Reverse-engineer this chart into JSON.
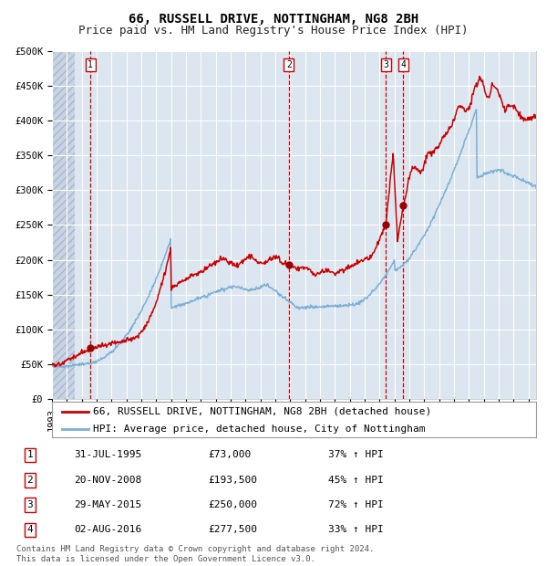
{
  "title": "66, RUSSELL DRIVE, NOTTINGHAM, NG8 2BH",
  "subtitle": "Price paid vs. HM Land Registry's House Price Index (HPI)",
  "ylim": [
    0,
    500000
  ],
  "yticks": [
    0,
    50000,
    100000,
    150000,
    200000,
    250000,
    300000,
    350000,
    400000,
    450000,
    500000
  ],
  "ytick_labels": [
    "£0",
    "£50K",
    "£100K",
    "£150K",
    "£200K",
    "£250K",
    "£300K",
    "£350K",
    "£400K",
    "£450K",
    "£500K"
  ],
  "background_color": "#ffffff",
  "plot_bg_color": "#dce6f1",
  "grid_color": "#ffffff",
  "red_line_color": "#cc0000",
  "blue_line_color": "#7bafd4",
  "marker_color": "#990000",
  "vline_color": "#cc0000",
  "title_fontsize": 10,
  "subtitle_fontsize": 9,
  "tick_fontsize": 7.5,
  "legend_fontsize": 8,
  "table_fontsize": 8,
  "footer_fontsize": 6.5,
  "sale_events": [
    {
      "label": "1",
      "date_x": 1995.58,
      "price": 73000
    },
    {
      "label": "2",
      "date_x": 2008.9,
      "price": 193500
    },
    {
      "label": "3",
      "date_x": 2015.41,
      "price": 250000
    },
    {
      "label": "4",
      "date_x": 2016.58,
      "price": 277500
    }
  ],
  "table_rows": [
    [
      "1",
      "31-JUL-1995",
      "£73,000",
      "37% ↑ HPI"
    ],
    [
      "2",
      "20-NOV-2008",
      "£193,500",
      "45% ↑ HPI"
    ],
    [
      "3",
      "29-MAY-2015",
      "£250,000",
      "72% ↑ HPI"
    ],
    [
      "4",
      "02-AUG-2016",
      "£277,500",
      "33% ↑ HPI"
    ]
  ],
  "legend_entries": [
    "66, RUSSELL DRIVE, NOTTINGHAM, NG8 2BH (detached house)",
    "HPI: Average price, detached house, City of Nottingham"
  ],
  "footer_text": "Contains HM Land Registry data © Crown copyright and database right 2024.\nThis data is licensed under the Open Government Licence v3.0.",
  "xmin": 1993.0,
  "xmax": 2025.5,
  "hatch_end": 1994.5
}
